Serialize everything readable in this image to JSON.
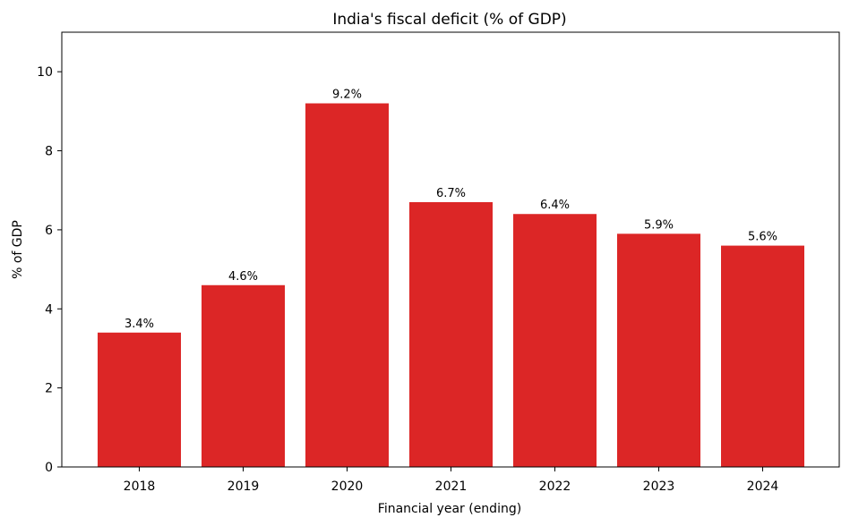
{
  "chart_data": {
    "type": "bar",
    "title": "India's fiscal deficit (% of GDP)",
    "xlabel": "Financial year (ending)",
    "ylabel": "% of GDP",
    "categories": [
      "2018",
      "2019",
      "2020",
      "2021",
      "2022",
      "2023",
      "2024"
    ],
    "values": [
      3.4,
      4.6,
      9.2,
      6.7,
      6.4,
      5.9,
      5.6
    ],
    "data_labels": [
      "3.4%",
      "4.6%",
      "9.2%",
      "6.7%",
      "6.4%",
      "5.9%",
      "5.6%"
    ],
    "ylim": [
      0,
      11
    ],
    "yticks": [
      0,
      2,
      4,
      6,
      8,
      10
    ],
    "bar_color": "#dc2626",
    "grid": false,
    "legend": "none"
  }
}
